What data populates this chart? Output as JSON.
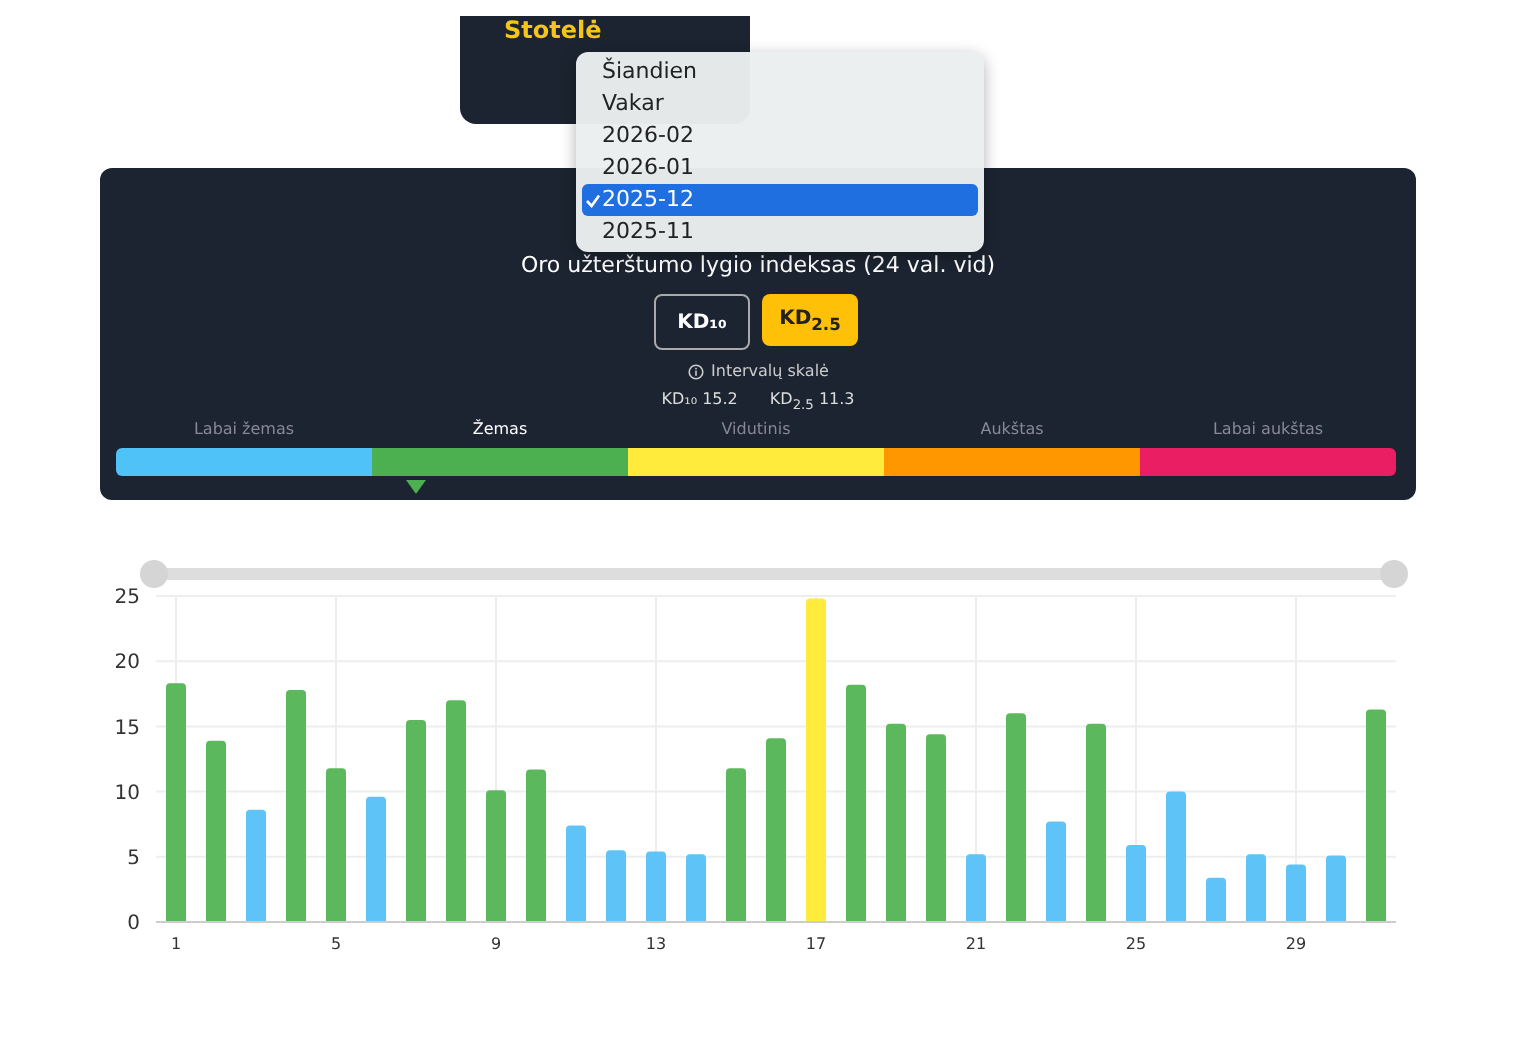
{
  "chart_data": [
    {
      "type": "other",
      "title": "Oro užterštumo lygio indeksas (24 val. vid)",
      "annotations": [
        "Stotelė",
        "Šiandien",
        "Vakar",
        "2026-02",
        "2026-01",
        "2025-12",
        "2025-11",
        "KD₁₀",
        "KD$_{2.5}$",
        "Intervalų skalė",
        "KD₁₀ 15.2",
        "KD$_{2.5}$ 11.3"
      ],
      "categories": [
        "Labai žemas",
        "Žemas",
        "Vidutinis",
        "Aukštas",
        "Labai aukštas"
      ]
    },
    {
      "type": "bar",
      "categories": [
        "1",
        null,
        null,
        null,
        "5",
        null,
        null,
        null,
        "9",
        null,
        null,
        null,
        "13",
        null,
        null,
        null,
        "17",
        null,
        null,
        null,
        "21",
        null,
        null,
        null,
        "25",
        null,
        null,
        null,
        "29",
        null,
        null
      ],
      "values": [
        18.3,
        13.9,
        8.6,
        17.8,
        11.8,
        9.6,
        15.5,
        17.0,
        10.1,
        11.7,
        7.4,
        5.5,
        5.4,
        5.2,
        11.8,
        14.1,
        24.8,
        18.2,
        15.2,
        14.4,
        5.2,
        16.0,
        7.7,
        15.2,
        5.9,
        10.0,
        3.4,
        5.2,
        4.4,
        5.1,
        16.3
      ],
      "colors": [
        "#5cb85c",
        "#5cb85c",
        "#5ec4f8",
        "#5cb85c",
        "#5cb85c",
        "#5ec4f8",
        "#5cb85c",
        "#5cb85c",
        "#5cb85c",
        "#5cb85c",
        "#5ec4f8",
        "#5ec4f8",
        "#5ec4f8",
        "#5ec4f8",
        "#5cb85c",
        "#5cb85c",
        "#ffeb3b",
        "#5cb85c",
        "#5cb85c",
        "#5cb85c",
        "#5ec4f8",
        "#5cb85c",
        "#5ec4f8",
        "#5cb85c",
        "#5ec4f8",
        "#5ec4f8",
        "#5ec4f8",
        "#5ec4f8",
        "#5ec4f8",
        "#5ec4f8",
        "#5cb85c"
      ],
      "ylim": [
        0,
        25
      ],
      "yticks": [
        0,
        5,
        10,
        15,
        20,
        25
      ],
      "grid": true
    }
  ]
}
